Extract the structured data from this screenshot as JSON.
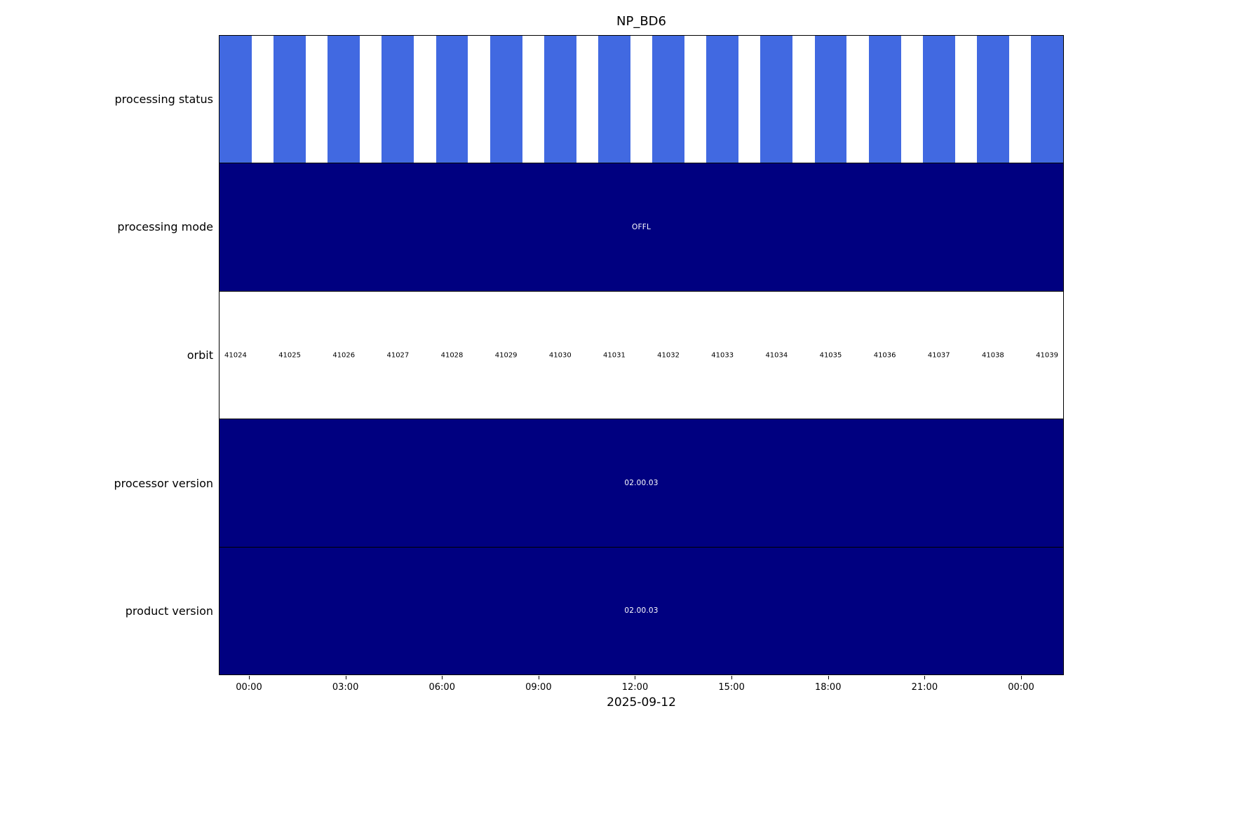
{
  "chart_data": {
    "type": "bar",
    "variant": "status-timeline",
    "title": "NP_BD6",
    "xlabel": "2025-09-12",
    "x_ticks": [
      "00:00",
      "03:00",
      "06:00",
      "09:00",
      "12:00",
      "15:00",
      "18:00",
      "21:00",
      "00:00"
    ],
    "grid": false,
    "legend": false,
    "colors": {
      "orbit_bar_blue": "#4169E1",
      "solid_navy": "#000080",
      "frame": "#000000",
      "background": "#ffffff"
    },
    "rows": [
      {
        "label": "processing status",
        "representation": "one blue bar per orbit granule, evenly spaced across the day",
        "color": "#4169E1",
        "bar_count": 16
      },
      {
        "label": "processing mode",
        "representation": "single full-width bar",
        "color": "#000080",
        "value": "OFFL"
      },
      {
        "label": "orbit",
        "representation": "orbit numbers, one per granule",
        "values": [
          "41024",
          "41025",
          "41026",
          "41027",
          "41028",
          "41029",
          "41030",
          "41031",
          "41032",
          "41033",
          "41034",
          "41035",
          "41036",
          "41037",
          "41038",
          "41039"
        ]
      },
      {
        "label": "processor version",
        "representation": "single full-width bar",
        "color": "#000080",
        "value": "02.00.03"
      },
      {
        "label": "product version",
        "representation": "single full-width bar",
        "color": "#000080",
        "value": "02.00.03"
      }
    ]
  }
}
